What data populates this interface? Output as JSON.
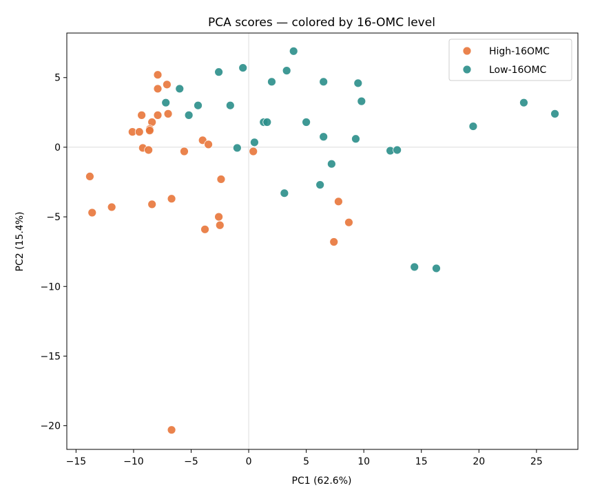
{
  "chart_data": {
    "type": "scatter",
    "title": "PCA scores — colored by 16-OMC level",
    "xlabel": "PC1 (62.6%)",
    "ylabel": "PC2 (15.4%)",
    "xlim": [
      -15.8,
      28.6
    ],
    "ylim": [
      -21.7,
      8.2
    ],
    "xticks": [
      -15,
      -10,
      -5,
      0,
      5,
      10,
      15,
      20,
      25
    ],
    "yticks": [
      -20,
      -15,
      -10,
      -5,
      0,
      5
    ],
    "reference_lines": {
      "x": 0,
      "y": 0
    },
    "grid": false,
    "legend_position": "top-right",
    "series": [
      {
        "name": "High-16OMC",
        "color": "#E8763A",
        "points": [
          [
            -7.9,
            5.2
          ],
          [
            -7.1,
            4.5
          ],
          [
            -7.9,
            4.2
          ],
          [
            -9.3,
            2.3
          ],
          [
            -7.9,
            2.3
          ],
          [
            -7.0,
            2.4
          ],
          [
            -8.4,
            1.8
          ],
          [
            -8.6,
            1.3
          ],
          [
            -8.6,
            1.2
          ],
          [
            -10.1,
            1.1
          ],
          [
            -9.5,
            1.1
          ],
          [
            -9.2,
            -0.05
          ],
          [
            -8.7,
            -0.2
          ],
          [
            -5.6,
            -0.3
          ],
          [
            -4.0,
            0.5
          ],
          [
            -3.5,
            0.2
          ],
          [
            0.4,
            -0.3
          ],
          [
            -2.4,
            -2.3
          ],
          [
            -13.8,
            -2.1
          ],
          [
            -6.7,
            -3.7
          ],
          [
            -8.4,
            -4.1
          ],
          [
            -11.9,
            -4.3
          ],
          [
            -13.6,
            -4.7
          ],
          [
            -2.6,
            -5.0
          ],
          [
            -2.5,
            -5.6
          ],
          [
            -3.8,
            -5.9
          ],
          [
            7.8,
            -3.9
          ],
          [
            8.7,
            -5.4
          ],
          [
            7.4,
            -6.8
          ],
          [
            -6.7,
            -20.3
          ]
        ]
      },
      {
        "name": "Low-16OMC",
        "color": "#2A8E8A",
        "points": [
          [
            3.9,
            6.9
          ],
          [
            -2.6,
            5.4
          ],
          [
            -0.5,
            5.7
          ],
          [
            3.3,
            5.5
          ],
          [
            2.0,
            4.7
          ],
          [
            6.5,
            4.7
          ],
          [
            9.5,
            4.6
          ],
          [
            -6.0,
            4.2
          ],
          [
            -7.2,
            3.2
          ],
          [
            -4.4,
            3.0
          ],
          [
            -1.6,
            3.0
          ],
          [
            9.8,
            3.3
          ],
          [
            23.9,
            3.2
          ],
          [
            26.6,
            2.4
          ],
          [
            -5.2,
            2.3
          ],
          [
            1.3,
            1.8
          ],
          [
            1.6,
            1.8
          ],
          [
            5.0,
            1.8
          ],
          [
            19.5,
            1.5
          ],
          [
            0.5,
            0.35
          ],
          [
            -1.0,
            -0.05
          ],
          [
            6.5,
            0.75
          ],
          [
            9.3,
            0.6
          ],
          [
            12.3,
            -0.25
          ],
          [
            12.9,
            -0.2
          ],
          [
            7.2,
            -1.2
          ],
          [
            6.2,
            -2.7
          ],
          [
            3.1,
            -3.3
          ],
          [
            14.4,
            -8.6
          ],
          [
            16.3,
            -8.7
          ]
        ]
      }
    ]
  }
}
